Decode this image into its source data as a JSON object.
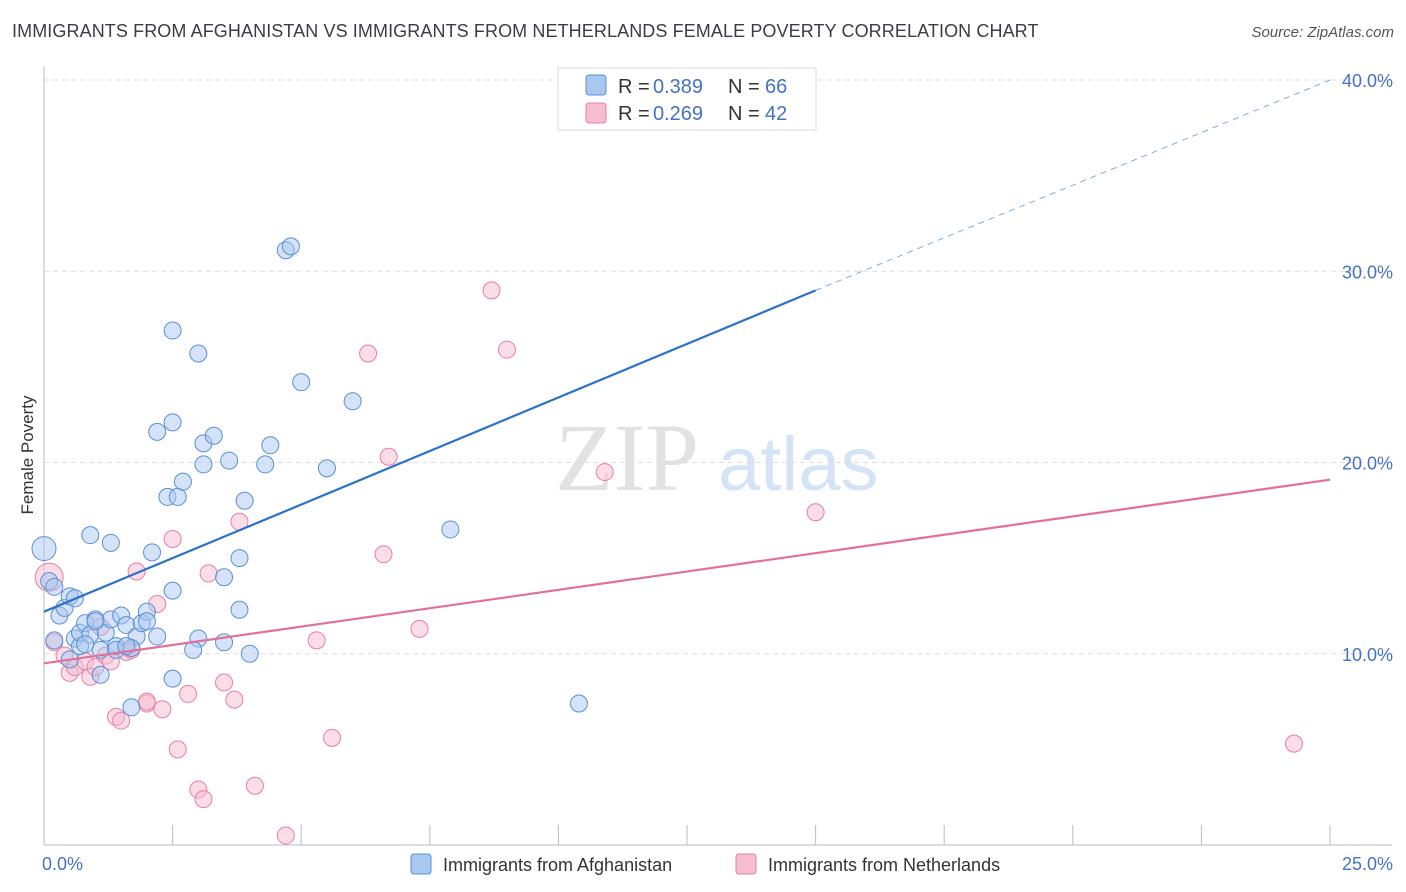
{
  "header": {
    "title": "IMMIGRANTS FROM AFGHANISTAN VS IMMIGRANTS FROM NETHERLANDS FEMALE POVERTY CORRELATION CHART",
    "source": "Source: ZipAtlas.com"
  },
  "watermark": {
    "zip": "ZIP",
    "atlas": "atlas"
  },
  "legend": {
    "r_label": "R =",
    "n_label": "N =",
    "entries": [
      {
        "r": "0.389",
        "n": "66"
      },
      {
        "r": "0.269",
        "n": "42"
      }
    ]
  },
  "colors": {
    "afghanistan_fill": "#a9c8f0",
    "afghanistan_stroke": "#5b8fd6",
    "afghanistan_line": "#2a72c9",
    "netherlands_fill": "#f6bcd0",
    "netherlands_stroke": "#e87ea3",
    "netherlands_line": "#e0709a",
    "tick_text": "#4472c4",
    "grid": "#dddddd"
  },
  "chart_data": {
    "type": "scatter",
    "title": "IMMIGRANTS FROM AFGHANISTAN VS IMMIGRANTS FROM NETHERLANDS FEMALE POVERTY CORRELATION CHART",
    "xlabel": "",
    "ylabel": "Female Poverty",
    "xlim": [
      0,
      25
    ],
    "ylim": [
      0,
      40
    ],
    "x_tick_labels": [
      "0.0%",
      "25.0%"
    ],
    "y_ticks": [
      10,
      20,
      30,
      40
    ],
    "y_tick_labels": [
      "10.0%",
      "20.0%",
      "30.0%",
      "40.0%"
    ],
    "grid": true,
    "legend_position": "top-center",
    "series": [
      {
        "name": "Immigrants from Afghanistan",
        "r": 0.389,
        "n": 66,
        "trend": {
          "x": [
            0,
            15
          ],
          "y": [
            12.2,
            29.0
          ],
          "dashed_extension_to": [
            25,
            40.0
          ]
        },
        "points": [
          [
            0.0,
            15.5
          ],
          [
            0.1,
            13.8
          ],
          [
            0.2,
            13.5
          ],
          [
            0.3,
            12.0
          ],
          [
            0.4,
            12.4
          ],
          [
            0.5,
            13.0
          ],
          [
            0.2,
            10.7
          ],
          [
            0.6,
            10.8
          ],
          [
            0.7,
            10.4
          ],
          [
            0.7,
            11.1
          ],
          [
            0.8,
            11.6
          ],
          [
            0.9,
            11.0
          ],
          [
            1.0,
            11.8
          ],
          [
            1.1,
            10.2
          ],
          [
            1.2,
            11.1
          ],
          [
            1.3,
            11.8
          ],
          [
            1.4,
            10.4
          ],
          [
            1.5,
            12.0
          ],
          [
            1.6,
            11.5
          ],
          [
            1.8,
            10.9
          ],
          [
            1.9,
            11.6
          ],
          [
            1.4,
            10.2
          ],
          [
            1.7,
            10.3
          ],
          [
            0.9,
            16.2
          ],
          [
            1.3,
            15.8
          ],
          [
            2.1,
            15.3
          ],
          [
            2.0,
            12.2
          ],
          [
            2.2,
            10.9
          ],
          [
            2.5,
            13.3
          ],
          [
            2.4,
            18.2
          ],
          [
            2.6,
            18.2
          ],
          [
            2.7,
            19.0
          ],
          [
            2.2,
            21.6
          ],
          [
            2.5,
            22.1
          ],
          [
            3.1,
            19.9
          ],
          [
            3.1,
            21.0
          ],
          [
            3.3,
            21.4
          ],
          [
            3.6,
            20.1
          ],
          [
            3.8,
            15.0
          ],
          [
            3.5,
            14.0
          ],
          [
            3.8,
            12.3
          ],
          [
            3.9,
            18.0
          ],
          [
            4.0,
            10.0
          ],
          [
            3.5,
            10.6
          ],
          [
            3.0,
            10.8
          ],
          [
            2.9,
            10.2
          ],
          [
            2.5,
            8.7
          ],
          [
            1.7,
            7.2
          ],
          [
            1.1,
            8.9
          ],
          [
            0.5,
            9.7
          ],
          [
            4.3,
            19.9
          ],
          [
            4.4,
            20.9
          ],
          [
            5.0,
            24.2
          ],
          [
            4.7,
            31.1
          ],
          [
            4.8,
            31.3
          ],
          [
            5.5,
            19.7
          ],
          [
            6.0,
            23.2
          ],
          [
            2.5,
            26.9
          ],
          [
            3.0,
            25.7
          ],
          [
            7.9,
            16.5
          ],
          [
            10.4,
            7.4
          ],
          [
            0.6,
            12.9
          ],
          [
            1.0,
            11.7
          ],
          [
            1.6,
            10.4
          ],
          [
            0.8,
            10.5
          ],
          [
            2.0,
            11.7
          ]
        ]
      },
      {
        "name": "Immigrants from Netherlands",
        "r": 0.269,
        "n": 42,
        "trend": {
          "x": [
            0,
            25
          ],
          "y": [
            9.5,
            19.1
          ]
        },
        "points": [
          [
            0.1,
            14.0
          ],
          [
            0.2,
            10.6
          ],
          [
            0.4,
            9.9
          ],
          [
            0.5,
            9.0
          ],
          [
            0.6,
            9.3
          ],
          [
            0.8,
            9.6
          ],
          [
            0.9,
            8.8
          ],
          [
            1.0,
            9.3
          ],
          [
            1.1,
            11.4
          ],
          [
            1.2,
            9.9
          ],
          [
            1.3,
            9.6
          ],
          [
            1.6,
            10.1
          ],
          [
            1.7,
            10.2
          ],
          [
            1.8,
            14.3
          ],
          [
            2.0,
            7.4
          ],
          [
            2.2,
            12.6
          ],
          [
            2.5,
            16.0
          ],
          [
            2.3,
            7.1
          ],
          [
            2.6,
            5.0
          ],
          [
            2.8,
            7.9
          ],
          [
            3.0,
            2.9
          ],
          [
            3.1,
            2.4
          ],
          [
            3.2,
            14.2
          ],
          [
            3.5,
            8.5
          ],
          [
            3.7,
            7.6
          ],
          [
            3.8,
            16.9
          ],
          [
            4.1,
            3.1
          ],
          [
            4.7,
            0.5
          ],
          [
            5.3,
            10.7
          ],
          [
            5.6,
            5.6
          ],
          [
            6.3,
            25.7
          ],
          [
            6.6,
            15.2
          ],
          [
            6.7,
            20.3
          ],
          [
            7.3,
            11.3
          ],
          [
            8.7,
            29.0
          ],
          [
            9.0,
            25.9
          ],
          [
            10.9,
            19.5
          ],
          [
            15.0,
            17.4
          ],
          [
            24.3,
            5.3
          ],
          [
            1.4,
            6.7
          ],
          [
            1.5,
            6.5
          ],
          [
            2.0,
            7.5
          ]
        ]
      }
    ]
  },
  "bottom_legend": {
    "items": [
      {
        "label": "Immigrants from Afghanistan"
      },
      {
        "label": "Immigrants from Netherlands"
      }
    ]
  }
}
